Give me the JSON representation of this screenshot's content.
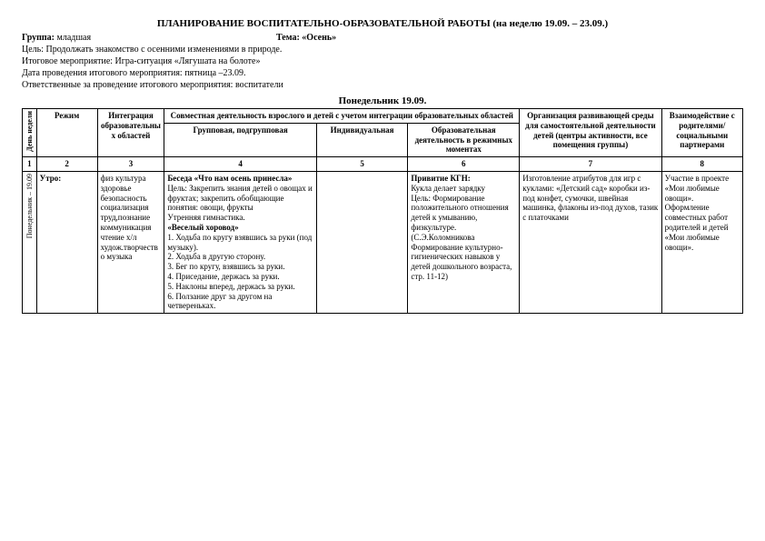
{
  "title": "ПЛАНИРОВАНИЕ ВОСПИТАТЕЛЬНО-ОБРАЗОВАТЕЛЬНОЙ РАБОТЫ (на неделю 19.09. – 23.09.)",
  "group_label": "Группа:",
  "group_value": "младшая",
  "theme_label": "Тема: «Осень»",
  "goal": "Цель: Продолжать знакомство с осенними изменениями в природе.",
  "event": "Итоговое мероприятие: Игра-ситуация «Лягушата на болоте»",
  "event_date": "Дата проведения итогового мероприятия: пятница –23.09.",
  "responsible": "Ответственные за проведение итогового мероприятия: воспитатели",
  "day_header": "Понедельник 19.09.",
  "headers": {
    "day_week": "День недели",
    "rezhim": "Режим",
    "integration": "Интеграция образовательных областей",
    "joint_activity": "Совместная деятельность взрослого и детей с учетом интеграции образовательных областей",
    "group_sub": "Групповая, подгрупповая",
    "individual": "Индивидуальная",
    "obr_rezhim": "Образовательная деятельность в режимных моментах",
    "organization": "Организация развивающей среды для самостоятельной деятельности детей (центры активности, все помещения группы)",
    "interaction": "Взаимодействие с родителями/ социальными партнерами"
  },
  "nums": {
    "c1": "1",
    "c2": "2",
    "c3": "3",
    "c4": "4",
    "c5": "5",
    "c6": "6",
    "c7": "7",
    "c8": "8"
  },
  "row1": {
    "day_label": "Понедельник – 19.09",
    "rezhim": "Утро:",
    "integration": "физ культура здоровье безопасность социализация труд,познание коммуникация чтение х/л худож.творчество музыка",
    "group_bold1": "Беседа «Что нам осень принесла»",
    "group_body1": "Цель: Закрепить знания детей о овощах и фруктах; закрепить обобщающие понятия: овощи, фрукты",
    "group_body2": "Утренняя гимнастика.",
    "group_bold2": "«Веселый хоровод»",
    "group_list1": "1. Ходьба по кругу взявшись за руки (под музыку).",
    "group_list2": "2. Ходьба в другую сторону.",
    "group_list3": "3. Бег по кругу, взявшись за руки.",
    "group_list4": "4. Приседание, держась за руки.",
    "group_list5": "5. Наклоны вперед, держась за руки.",
    "group_list6": "6. Ползание друг за другом на четвереньках.",
    "individual": "",
    "obr_bold": "Привитие КГН:",
    "obr_line1": "Кукла делает зарядку",
    "obr_line2": "Цель: Формирование положительного отношения детей к умыванию, физкультуре.",
    "obr_line3": "(С.Э.Коломникова Формирование культурно-гигиенических навыков у детей дошкольного возраста, стр. 11-12)",
    "org": "Изготовление атрибутов для игр с куклами: «Детский сад» коробки из-под конфет, сумочки, швейная машинка, флаконы из-под духов, тазик с платочками",
    "vz": "Участие в проекте «Мои любимые овощи». Оформление совместных работ родителей и детей «Мои любимые овощи»."
  }
}
